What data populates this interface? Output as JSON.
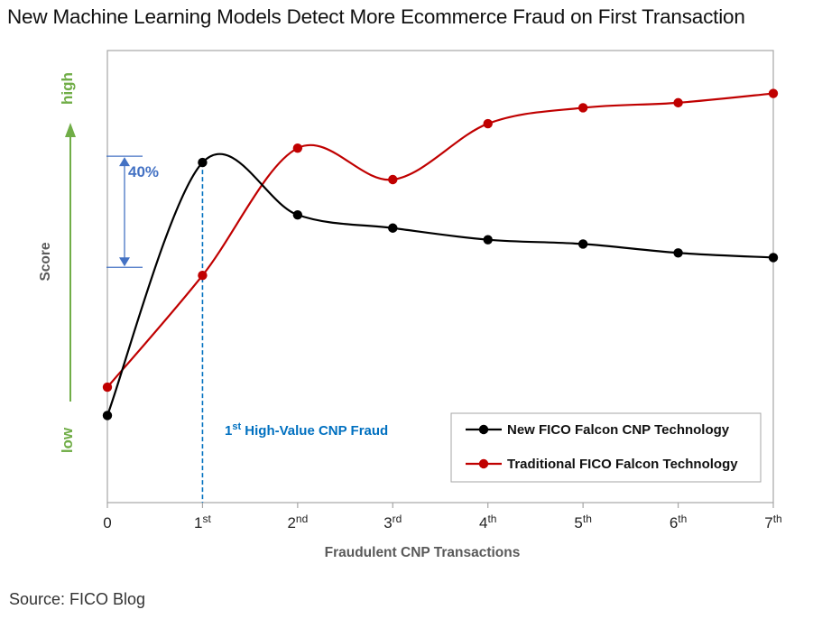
{
  "title": "New Machine Learning Models Detect More Ecommerce Fraud on First Transaction",
  "source": "Source: FICO Blog",
  "chart_data": {
    "type": "line",
    "xlabel": "Fraudulent CNP Transactions",
    "ylabel": "Score",
    "y_high_label": "high",
    "y_low_label": "low",
    "x_ticks": [
      {
        "base": "0",
        "sup": ""
      },
      {
        "base": "1",
        "sup": "st"
      },
      {
        "base": "2",
        "sup": "nd"
      },
      {
        "base": "3",
        "sup": "rd"
      },
      {
        "base": "4",
        "sup": "th"
      },
      {
        "base": "5",
        "sup": "th"
      },
      {
        "base": "6",
        "sup": "th"
      },
      {
        "base": "7",
        "sup": "th"
      }
    ],
    "x": [
      0,
      1,
      2,
      3,
      4,
      5,
      6,
      7
    ],
    "ylim": [
      0,
      100
    ],
    "grid": false,
    "legend_position": "bottom-right",
    "series": [
      {
        "name": "New FICO Falcon CNP Technology",
        "color": "#000000",
        "values": [
          18.5,
          83.7,
          70.2,
          66.8,
          63.8,
          62.7,
          60.4,
          59.2
        ]
      },
      {
        "name": "Traditional FICO Falcon Technology",
        "color": "#c00000",
        "values": [
          25.8,
          54.6,
          87.4,
          79.3,
          93.7,
          97.8,
          99.1,
          101.5
        ]
      }
    ],
    "annotations": {
      "gap_label": "40%",
      "gap_color": "#4472c4",
      "marker_label_base": "1",
      "marker_label_sup": "st",
      "marker_label_text": " High-Value CNP Fraud",
      "marker_color": "#0070c0",
      "arrow_color": "#70ad47"
    }
  }
}
